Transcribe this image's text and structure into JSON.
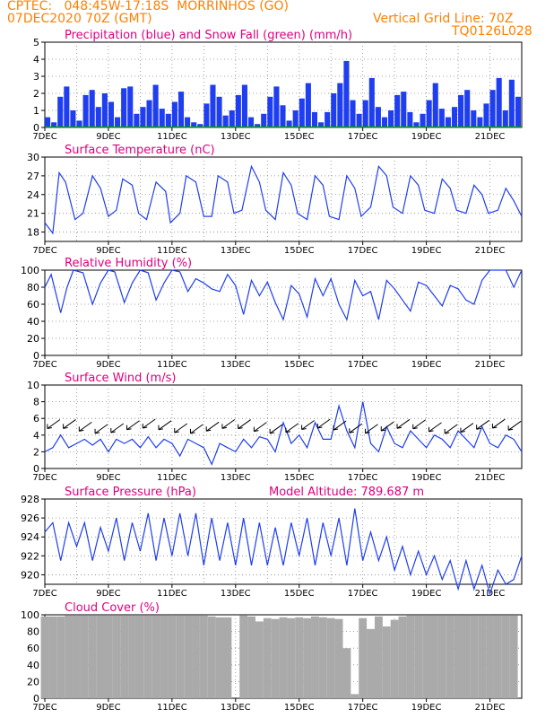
{
  "header": {
    "line1_left": "CPTEC:   048:45W-17:18S  MORRINHOS (GO)",
    "line2_left": "07DEC2020 70Z (GMT)",
    "line1_right": "Vertical Grid Line: 70Z",
    "line2_right": "TQ0126L028"
  },
  "colors": {
    "orange": "#ff8000",
    "magenta": "#e0007f",
    "blue": "#1f3ef0",
    "green": "#00a000",
    "gray": "#aaaaaa"
  },
  "x_ticks": [
    "7DEC",
    "9DEC",
    "11DEC",
    "13DEC",
    "15DEC",
    "17DEC",
    "19DEC",
    "21DEC"
  ],
  "chart_data": [
    {
      "type": "bar",
      "title": "Precipitation (blue) and Snow Fall (green) (mm/h)",
      "ylim": [
        0,
        5
      ],
      "yticks": [
        0,
        1,
        2,
        3,
        4,
        5
      ],
      "series": [
        {
          "name": "Precipitation",
          "color": "#1f3ef0",
          "x": [
            7.1,
            7.3,
            7.5,
            7.7,
            7.9,
            8.1,
            8.3,
            8.5,
            8.7,
            8.9,
            9.1,
            9.3,
            9.5,
            9.7,
            9.9,
            10.1,
            10.3,
            10.5,
            10.7,
            10.9,
            11.1,
            11.3,
            11.5,
            11.7,
            11.9,
            12.1,
            12.3,
            12.5,
            12.7,
            12.9,
            13.1,
            13.3,
            13.5,
            13.7,
            13.9,
            14.1,
            14.3,
            14.5,
            14.7,
            14.9,
            15.1,
            15.3,
            15.5,
            15.7,
            15.9,
            16.1,
            16.3,
            16.5,
            16.7,
            16.9,
            17.1,
            17.3,
            17.5,
            17.7,
            17.9,
            18.1,
            18.3,
            18.5,
            18.7,
            18.9,
            19.1,
            19.3,
            19.5,
            19.7,
            19.9,
            20.1,
            20.3,
            20.5,
            20.7,
            20.9,
            21.1,
            21.3,
            21.5,
            21.7,
            21.9
          ],
          "values": [
            0.6,
            0.3,
            1.8,
            2.4,
            1.0,
            0.4,
            1.9,
            2.2,
            1.2,
            2.0,
            1.5,
            0.6,
            2.3,
            2.4,
            0.8,
            1.2,
            1.6,
            2.5,
            1.1,
            0.8,
            1.5,
            2.1,
            0.6,
            0.3,
            0.2,
            1.4,
            2.5,
            1.8,
            0.7,
            1.0,
            1.9,
            2.5,
            0.6,
            0.2,
            0.8,
            1.8,
            2.4,
            1.3,
            0.4,
            1.0,
            1.7,
            2.6,
            0.9,
            0.3,
            0.9,
            2.0,
            2.6,
            3.9,
            1.6,
            0.8,
            1.6,
            2.9,
            1.2,
            0.6,
            1.0,
            1.9,
            2.1,
            0.9,
            0.3,
            0.8,
            1.6,
            2.6,
            1.1,
            0.6,
            1.2,
            1.9,
            2.2,
            1.0,
            0.6,
            1.4,
            2.2,
            2.9,
            1.0,
            2.8,
            1.8
          ]
        },
        {
          "name": "Snow Fall",
          "color": "#00a000",
          "values": [
            0
          ]
        }
      ]
    },
    {
      "type": "line",
      "title": "Surface Temperature (nC)",
      "ylim": [
        16.5,
        30
      ],
      "yticks": [
        18,
        21,
        24,
        27,
        30
      ],
      "series": [
        {
          "name": "Surface Temperature",
          "color": "#1f3ef0",
          "x": [
            7.0,
            7.25,
            7.45,
            7.65,
            7.95,
            8.2,
            8.5,
            8.75,
            9.0,
            9.25,
            9.45,
            9.75,
            9.95,
            10.2,
            10.5,
            10.8,
            10.95,
            11.25,
            11.45,
            11.75,
            12.0,
            12.25,
            12.45,
            12.75,
            12.95,
            13.2,
            13.5,
            13.75,
            13.95,
            14.25,
            14.5,
            14.75,
            14.95,
            15.25,
            15.5,
            15.75,
            15.95,
            16.25,
            16.5,
            16.75,
            16.95,
            17.25,
            17.5,
            17.75,
            17.95,
            18.25,
            18.5,
            18.75,
            18.95,
            19.25,
            19.5,
            19.75,
            19.95,
            20.25,
            20.5,
            20.75,
            20.95,
            21.25,
            21.5,
            21.75,
            22.0
          ],
          "values": [
            19.5,
            17.8,
            27.5,
            26.0,
            20.0,
            21.0,
            27.0,
            25.0,
            20.5,
            21.5,
            26.5,
            25.5,
            21.0,
            20.0,
            26.0,
            24.5,
            19.5,
            21.0,
            27.0,
            26.0,
            20.5,
            20.5,
            27.0,
            26.0,
            21.0,
            21.5,
            28.5,
            26.0,
            21.5,
            20.0,
            27.5,
            25.5,
            21.0,
            20.0,
            27.0,
            25.5,
            20.5,
            20.0,
            27.0,
            25.0,
            20.5,
            22.0,
            28.5,
            27.0,
            22.0,
            21.0,
            27.0,
            25.5,
            21.5,
            21.0,
            26.5,
            25.0,
            21.5,
            21.0,
            25.5,
            24.0,
            21.0,
            21.5,
            25.0,
            23.0,
            20.5
          ]
        }
      ]
    },
    {
      "type": "line",
      "title": "Relative Humidity (%)",
      "ylim": [
        0,
        100
      ],
      "yticks": [
        0,
        20,
        40,
        60,
        80,
        100
      ],
      "series": [
        {
          "name": "Relative Humidity",
          "color": "#1f3ef0",
          "x": [
            7.0,
            7.2,
            7.5,
            7.7,
            7.9,
            8.2,
            8.5,
            8.75,
            9.0,
            9.2,
            9.5,
            9.75,
            10.0,
            10.25,
            10.5,
            10.75,
            11.0,
            11.25,
            11.5,
            11.75,
            12.0,
            12.25,
            12.5,
            12.75,
            13.0,
            13.25,
            13.5,
            13.75,
            14.0,
            14.25,
            14.5,
            14.75,
            15.0,
            15.25,
            15.5,
            15.75,
            16.0,
            16.25,
            16.5,
            16.75,
            17.0,
            17.25,
            17.5,
            17.75,
            18.0,
            18.25,
            18.5,
            18.75,
            19.0,
            19.25,
            19.5,
            19.75,
            20.0,
            20.25,
            20.5,
            20.75,
            21.0,
            21.25,
            21.5,
            21.75,
            22.0
          ],
          "values": [
            80,
            95,
            50,
            80,
            100,
            97,
            60,
            85,
            100,
            98,
            62,
            85,
            100,
            97,
            65,
            85,
            100,
            98,
            75,
            90,
            85,
            78,
            75,
            95,
            82,
            48,
            88,
            70,
            86,
            62,
            42,
            82,
            72,
            45,
            90,
            70,
            90,
            60,
            42,
            88,
            70,
            75,
            42,
            88,
            78,
            65,
            52,
            86,
            82,
            70,
            58,
            82,
            78,
            65,
            60,
            88,
            100,
            100,
            100,
            80,
            100
          ]
        }
      ]
    },
    {
      "type": "line",
      "title": "Surface Wind (m/s)",
      "ylim": [
        0,
        10
      ],
      "yticks": [
        0,
        2,
        4,
        6,
        8,
        10
      ],
      "series": [
        {
          "name": "Surface Wind",
          "color": "#1f3ef0",
          "x": [
            7.0,
            7.25,
            7.5,
            7.75,
            8.0,
            8.25,
            8.5,
            8.75,
            9.0,
            9.25,
            9.5,
            9.75,
            10.0,
            10.25,
            10.5,
            10.75,
            11.0,
            11.25,
            11.5,
            11.75,
            12.0,
            12.25,
            12.5,
            12.75,
            13.0,
            13.25,
            13.5,
            13.75,
            14.0,
            14.25,
            14.5,
            14.75,
            15.0,
            15.25,
            15.5,
            15.75,
            16.0,
            16.25,
            16.5,
            16.75,
            17.0,
            17.25,
            17.5,
            17.75,
            18.0,
            18.25,
            18.5,
            18.75,
            19.0,
            19.25,
            19.5,
            19.75,
            20.0,
            20.25,
            20.5,
            20.75,
            21.0,
            21.25,
            21.5,
            21.75,
            22.0
          ],
          "values": [
            2.0,
            2.5,
            4.0,
            2.5,
            3.0,
            3.5,
            2.8,
            3.5,
            2.0,
            3.5,
            3.0,
            3.5,
            2.5,
            3.8,
            2.5,
            3.5,
            3.0,
            1.5,
            3.5,
            3.0,
            2.5,
            0.5,
            3.0,
            2.5,
            2.0,
            3.5,
            2.5,
            3.8,
            3.5,
            2.0,
            5.5,
            3.0,
            4.0,
            2.5,
            5.5,
            3.5,
            3.5,
            7.5,
            4.5,
            2.5,
            8.0,
            3.0,
            2.0,
            5.0,
            3.0,
            2.5,
            4.5,
            3.5,
            2.5,
            4.0,
            3.5,
            2.5,
            4.5,
            3.5,
            2.5,
            5.0,
            3.0,
            2.5,
            4.0,
            3.5,
            2.0
          ]
        }
      ]
    },
    {
      "type": "line",
      "title": "Surface Pressure (hPa)",
      "subtitle": "Model Altitude: 789.687  m",
      "ylim": [
        919,
        928
      ],
      "yticks": [
        920,
        922,
        924,
        926,
        928
      ],
      "series": [
        {
          "name": "Surface Pressure",
          "color": "#1f3ef0",
          "x": [
            7.0,
            7.25,
            7.5,
            7.75,
            8.0,
            8.25,
            8.5,
            8.75,
            9.0,
            9.25,
            9.5,
            9.75,
            10.0,
            10.25,
            10.5,
            10.75,
            11.0,
            11.25,
            11.5,
            11.75,
            12.0,
            12.25,
            12.5,
            12.75,
            13.0,
            13.25,
            13.5,
            13.75,
            14.0,
            14.25,
            14.5,
            14.75,
            15.0,
            15.25,
            15.5,
            15.75,
            16.0,
            16.25,
            16.5,
            16.75,
            17.0,
            17.25,
            17.5,
            17.75,
            18.0,
            18.25,
            18.5,
            18.75,
            19.0,
            19.25,
            19.5,
            19.75,
            20.0,
            20.25,
            20.5,
            20.75,
            21.0,
            21.25,
            21.5,
            21.75,
            22.0
          ],
          "values": [
            924.5,
            925.5,
            921.5,
            925.5,
            923.0,
            925.5,
            921.5,
            925.0,
            922.5,
            926.0,
            921.5,
            925.5,
            922.5,
            926.5,
            921.5,
            926.0,
            922.0,
            926.5,
            922.0,
            926.5,
            921.0,
            926.0,
            921.5,
            925.5,
            921.0,
            926.0,
            921.0,
            925.5,
            921.0,
            925.0,
            921.0,
            925.5,
            922.0,
            926.0,
            921.0,
            925.5,
            922.0,
            926.0,
            921.0,
            927.0,
            921.5,
            924.5,
            921.5,
            924.0,
            920.5,
            923.0,
            920.0,
            922.5,
            920.0,
            922.0,
            919.5,
            921.5,
            918.5,
            921.5,
            918.5,
            921.0,
            918.0,
            920.5,
            919.0,
            919.5,
            922.0
          ]
        }
      ]
    },
    {
      "type": "bar",
      "title": "Cloud Cover (%)",
      "ylim": [
        0,
        100
      ],
      "yticks": [
        0,
        20,
        40,
        60,
        80,
        100
      ],
      "series": [
        {
          "name": "Cloud Cover",
          "color": "#aaaaaa",
          "x": [
            7.0,
            7.25,
            7.5,
            7.75,
            8.0,
            8.25,
            8.5,
            8.75,
            9.0,
            9.25,
            9.5,
            9.75,
            10.0,
            10.25,
            10.5,
            10.75,
            11.0,
            11.25,
            11.5,
            11.75,
            12.0,
            12.25,
            12.5,
            12.75,
            13.0,
            13.25,
            13.5,
            13.75,
            14.0,
            14.25,
            14.5,
            14.75,
            15.0,
            15.25,
            15.5,
            15.75,
            16.0,
            16.25,
            16.5,
            16.75,
            17.0,
            17.25,
            17.5,
            17.75,
            18.0,
            18.25,
            18.5,
            18.75,
            19.0,
            19.25,
            19.5,
            19.75,
            20.0,
            20.25,
            20.5,
            20.75,
            21.0,
            21.25,
            21.5,
            21.75
          ],
          "values": [
            98,
            98,
            98,
            99,
            99,
            99,
            99,
            99,
            99,
            99,
            99,
            99,
            99,
            99,
            99,
            99,
            99,
            99,
            99,
            99,
            99,
            98,
            97,
            97,
            0,
            99,
            98,
            92,
            96,
            95,
            97,
            96,
            97,
            96,
            98,
            97,
            96,
            95,
            60,
            5,
            96,
            83,
            98,
            86,
            94,
            98,
            99,
            99,
            99,
            99,
            99,
            99,
            99,
            99,
            99,
            99,
            99,
            99,
            99,
            99
          ]
        }
      ]
    }
  ]
}
